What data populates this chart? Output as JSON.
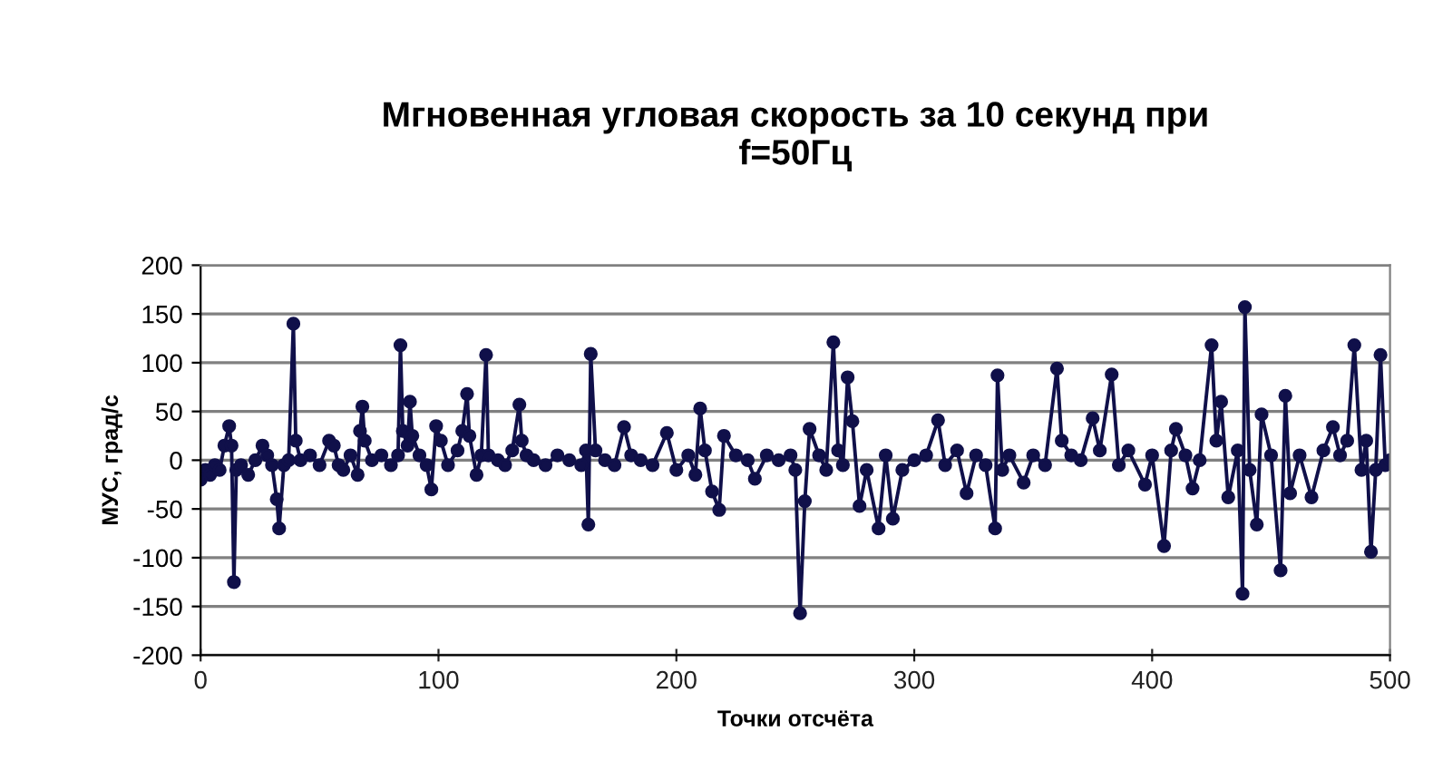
{
  "chart_data": {
    "type": "line",
    "title": "Мгновенная угловая скорость за 10 секунд при\nf=50Гц",
    "xlabel": "Точки отсчёта",
    "ylabel": "МУС, град/с",
    "xlim": [
      0,
      500
    ],
    "xticks": [
      0,
      100,
      200,
      300,
      400,
      500
    ],
    "ylim": [
      -200,
      200
    ],
    "yticks": [
      -200,
      -150,
      -100,
      -50,
      0,
      50,
      100,
      150,
      200
    ],
    "grid": "y",
    "marker": "circle",
    "line_style": "solid",
    "series": [
      {
        "color": "#10104a",
        "x": [
          0,
          2,
          4,
          6,
          8,
          10,
          12,
          13,
          14,
          15,
          17,
          20,
          23,
          26,
          28,
          30,
          32,
          33,
          35,
          37,
          39,
          40,
          42,
          46,
          50,
          54,
          56,
          58,
          60,
          63,
          66,
          67,
          68,
          69,
          72,
          76,
          80,
          83,
          84,
          85,
          87,
          88,
          89,
          92,
          95,
          97,
          99,
          101,
          104,
          108,
          110,
          112,
          113,
          116,
          118,
          120,
          121,
          125,
          128,
          131,
          134,
          135,
          137,
          140,
          145,
          150,
          155,
          160,
          162,
          163,
          164,
          166,
          170,
          174,
          178,
          181,
          185,
          190,
          196,
          200,
          205,
          208,
          210,
          212,
          215,
          218,
          220,
          225,
          230,
          233,
          238,
          243,
          248,
          250,
          252,
          254,
          256,
          260,
          263,
          266,
          268,
          270,
          272,
          274,
          277,
          280,
          285,
          288,
          291,
          295,
          300,
          305,
          310,
          313,
          318,
          322,
          326,
          330,
          334,
          335,
          337,
          340,
          346,
          350,
          355,
          360,
          362,
          366,
          370,
          375,
          378,
          383,
          386,
          390,
          397,
          400,
          405,
          408,
          410,
          414,
          417,
          420,
          425,
          427,
          429,
          432,
          436,
          438,
          439,
          441,
          444,
          446,
          450,
          454,
          456,
          458,
          462,
          467,
          472,
          476,
          479,
          482,
          485,
          488,
          490,
          492,
          494,
          496,
          498,
          500
        ],
        "values": [
          -20,
          -10,
          -15,
          -5,
          -10,
          15,
          35,
          15,
          -125,
          -10,
          -5,
          -15,
          0,
          15,
          5,
          -5,
          -40,
          -70,
          -5,
          0,
          140,
          20,
          0,
          5,
          -5,
          20,
          15,
          -5,
          -10,
          5,
          -15,
          30,
          55,
          20,
          0,
          5,
          -5,
          5,
          118,
          30,
          15,
          60,
          25,
          5,
          -5,
          -30,
          35,
          20,
          -5,
          10,
          30,
          68,
          25,
          -15,
          5,
          108,
          5,
          0,
          -5,
          10,
          57,
          20,
          5,
          0,
          -5,
          5,
          0,
          -5,
          10,
          -66,
          109,
          10,
          0,
          -5,
          34,
          5,
          0,
          -5,
          28,
          -10,
          5,
          -15,
          53,
          10,
          -32,
          -51,
          25,
          5,
          0,
          -19,
          5,
          0,
          5,
          -10,
          -157,
          -42,
          32,
          5,
          -10,
          121,
          10,
          -5,
          85,
          40,
          -47,
          -10,
          -70,
          5,
          -60,
          -10,
          0,
          5,
          41,
          -5,
          10,
          -34,
          5,
          -5,
          -70,
          87,
          -10,
          5,
          -23,
          5,
          -5,
          94,
          20,
          5,
          0,
          43,
          10,
          88,
          -5,
          10,
          -25,
          5,
          -88,
          10,
          32,
          5,
          -29,
          0,
          118,
          20,
          60,
          -38,
          10,
          -137,
          157,
          -10,
          -66,
          47,
          5,
          -113,
          66,
          -34,
          5,
          -38,
          10,
          34,
          5,
          20,
          118,
          -10,
          20,
          -94,
          -10,
          108,
          -5,
          0
        ]
      }
    ]
  }
}
